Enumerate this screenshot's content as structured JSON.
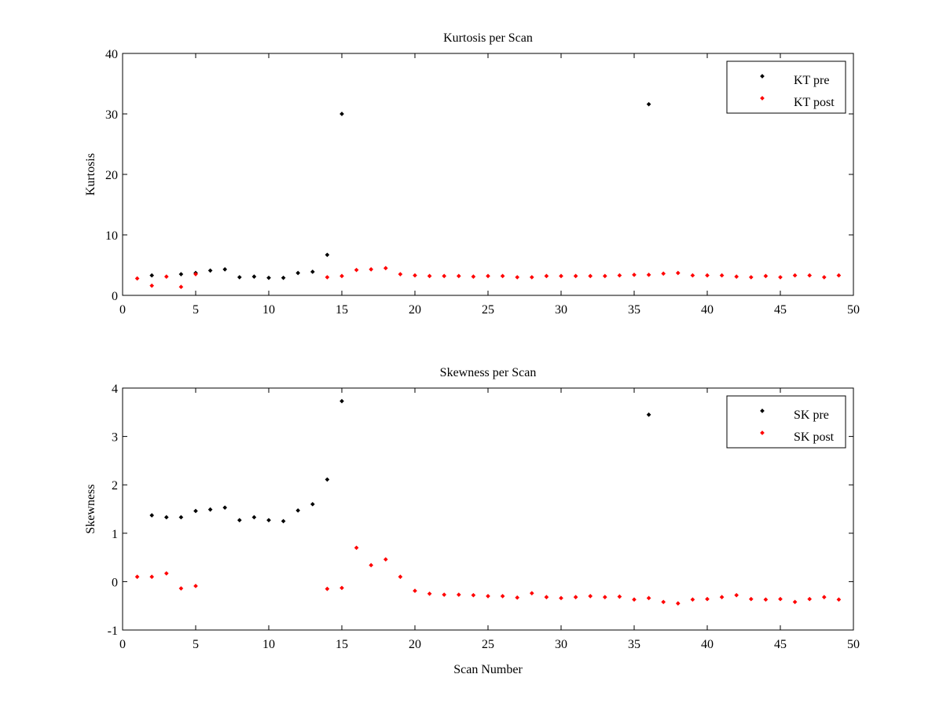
{
  "chart_data": [
    {
      "type": "scatter",
      "title": "Kurtosis per Scan",
      "xlabel": "",
      "ylabel": "Kurtosis",
      "xlim": [
        0,
        50
      ],
      "ylim": [
        0,
        40
      ],
      "xticks": [
        "0",
        "5",
        "10",
        "15",
        "20",
        "25",
        "30",
        "35",
        "40",
        "45",
        "50"
      ],
      "yticks": [
        "0",
        "10",
        "20",
        "30",
        "40"
      ],
      "legend_position": "top-right",
      "grid": false,
      "series": [
        {
          "name": "KT pre",
          "color": "#000000",
          "points": [
            [
              2,
              3.3
            ],
            [
              4,
              3.5
            ],
            [
              5,
              3.7
            ],
            [
              6,
              4.1
            ],
            [
              7,
              4.3
            ],
            [
              8,
              3.0
            ],
            [
              9,
              3.1
            ],
            [
              10,
              2.9
            ],
            [
              11,
              2.9
            ],
            [
              12,
              3.7
            ],
            [
              13,
              3.9
            ],
            [
              14,
              6.7
            ],
            [
              15,
              30.0
            ],
            [
              36,
              31.6
            ]
          ]
        },
        {
          "name": "KT post",
          "color": "#ff0000",
          "points": [
            [
              1,
              2.8
            ],
            [
              2,
              1.6
            ],
            [
              3,
              3.1
            ],
            [
              4,
              1.4
            ],
            [
              5,
              3.5
            ],
            [
              14,
              3.0
            ],
            [
              15,
              3.2
            ],
            [
              16,
              4.2
            ],
            [
              17,
              4.3
            ],
            [
              18,
              4.5
            ],
            [
              19,
              3.5
            ],
            [
              20,
              3.3
            ],
            [
              21,
              3.2
            ],
            [
              22,
              3.2
            ],
            [
              23,
              3.2
            ],
            [
              24,
              3.1
            ],
            [
              25,
              3.2
            ],
            [
              26,
              3.2
            ],
            [
              27,
              3.0
            ],
            [
              28,
              3.0
            ],
            [
              29,
              3.2
            ],
            [
              30,
              3.2
            ],
            [
              31,
              3.2
            ],
            [
              32,
              3.2
            ],
            [
              33,
              3.2
            ],
            [
              34,
              3.3
            ],
            [
              35,
              3.4
            ],
            [
              36,
              3.4
            ],
            [
              37,
              3.6
            ],
            [
              38,
              3.7
            ],
            [
              39,
              3.3
            ],
            [
              40,
              3.3
            ],
            [
              41,
              3.3
            ],
            [
              42,
              3.1
            ],
            [
              43,
              3.0
            ],
            [
              44,
              3.2
            ],
            [
              45,
              3.0
            ],
            [
              46,
              3.3
            ],
            [
              47,
              3.3
            ],
            [
              48,
              3.0
            ],
            [
              49,
              3.3
            ]
          ]
        }
      ]
    },
    {
      "type": "scatter",
      "title": "Skewness per Scan",
      "xlabel": "Scan Number",
      "ylabel": "Skewness",
      "xlim": [
        0,
        50
      ],
      "ylim": [
        -1,
        4
      ],
      "xticks": [
        "0",
        "5",
        "10",
        "15",
        "20",
        "25",
        "30",
        "35",
        "40",
        "45",
        "50"
      ],
      "yticks": [
        "-1",
        "0",
        "1",
        "2",
        "3",
        "4"
      ],
      "legend_position": "top-right",
      "grid": false,
      "series": [
        {
          "name": "SK pre",
          "color": "#000000",
          "points": [
            [
              2,
              1.37
            ],
            [
              3,
              1.33
            ],
            [
              4,
              1.33
            ],
            [
              5,
              1.46
            ],
            [
              6,
              1.49
            ],
            [
              7,
              1.53
            ],
            [
              8,
              1.27
            ],
            [
              9,
              1.33
            ],
            [
              10,
              1.27
            ],
            [
              11,
              1.25
            ],
            [
              12,
              1.47
            ],
            [
              13,
              1.6
            ],
            [
              14,
              2.11
            ],
            [
              15,
              3.73
            ],
            [
              36,
              3.45
            ]
          ]
        },
        {
          "name": "SK post",
          "color": "#ff0000",
          "points": [
            [
              1,
              0.1
            ],
            [
              2,
              0.1
            ],
            [
              3,
              0.17
            ],
            [
              4,
              -0.14
            ],
            [
              5,
              -0.09
            ],
            [
              14,
              -0.15
            ],
            [
              15,
              -0.13
            ],
            [
              16,
              0.7
            ],
            [
              17,
              0.34
            ],
            [
              18,
              0.46
            ],
            [
              19,
              0.1
            ],
            [
              20,
              -0.19
            ],
            [
              21,
              -0.25
            ],
            [
              22,
              -0.27
            ],
            [
              23,
              -0.27
            ],
            [
              24,
              -0.28
            ],
            [
              25,
              -0.3
            ],
            [
              26,
              -0.3
            ],
            [
              27,
              -0.33
            ],
            [
              28,
              -0.24
            ],
            [
              29,
              -0.32
            ],
            [
              30,
              -0.34
            ],
            [
              31,
              -0.32
            ],
            [
              32,
              -0.3
            ],
            [
              33,
              -0.32
            ],
            [
              34,
              -0.31
            ],
            [
              35,
              -0.37
            ],
            [
              36,
              -0.34
            ],
            [
              37,
              -0.42
            ],
            [
              38,
              -0.45
            ],
            [
              39,
              -0.37
            ],
            [
              40,
              -0.36
            ],
            [
              41,
              -0.32
            ],
            [
              42,
              -0.28
            ],
            [
              43,
              -0.36
            ],
            [
              44,
              -0.37
            ],
            [
              45,
              -0.36
            ],
            [
              46,
              -0.42
            ],
            [
              47,
              -0.36
            ],
            [
              48,
              -0.32
            ],
            [
              49,
              -0.37
            ]
          ]
        }
      ]
    }
  ]
}
